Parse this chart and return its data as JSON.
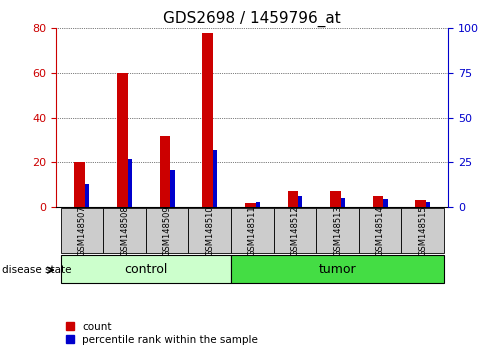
{
  "title": "GDS2698 / 1459796_at",
  "samples": [
    "GSM148507",
    "GSM148508",
    "GSM148509",
    "GSM148510",
    "GSM148511",
    "GSM148512",
    "GSM148513",
    "GSM148514",
    "GSM148515"
  ],
  "count_values": [
    20,
    60,
    32,
    78,
    2,
    7,
    7,
    5,
    3
  ],
  "percentile_values": [
    13,
    27,
    21,
    32,
    3,
    6,
    5,
    4.5,
    3
  ],
  "groups": [
    {
      "label": "control",
      "start": 0,
      "end": 4,
      "color": "#ccffcc"
    },
    {
      "label": "tumor",
      "start": 4,
      "end": 9,
      "color": "#44dd44"
    }
  ],
  "left_ylim": [
    0,
    80
  ],
  "right_ylim": [
    0,
    100
  ],
  "left_yticks": [
    0,
    20,
    40,
    60,
    80
  ],
  "right_yticks": [
    0,
    25,
    50,
    75,
    100
  ],
  "left_tick_color": "#cc0000",
  "right_tick_color": "#0000cc",
  "red_bar_width": 0.25,
  "blue_bar_width": 0.1,
  "red_color": "#cc0000",
  "blue_color": "#0000cc",
  "grid_color": "#000000",
  "bg_plot": "#ffffff",
  "bg_xtick": "#cccccc",
  "legend_items": [
    "count",
    "percentile rank within the sample"
  ],
  "disease_state_label": "disease state",
  "title_fontsize": 11,
  "tick_fontsize": 8
}
